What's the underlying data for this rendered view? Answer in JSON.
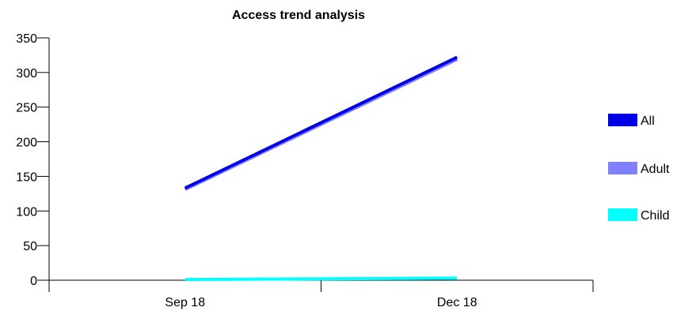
{
  "chart_data": {
    "type": "line",
    "title": "Access trend analysis",
    "xlabel": "",
    "ylabel": "",
    "categories": [
      "Sep 18",
      "Dec 18"
    ],
    "ylim": [
      0,
      350
    ],
    "yticks": [
      0,
      50,
      100,
      150,
      200,
      250,
      300,
      350
    ],
    "series": [
      {
        "name": "All",
        "values": [
          133,
          322
        ],
        "color": "#0000e6"
      },
      {
        "name": "Adult",
        "values": [
          131,
          319
        ],
        "color": "#8080ff"
      },
      {
        "name": "Child",
        "values": [
          1,
          3
        ],
        "color": "#00ffff"
      }
    ],
    "legend_position": "right",
    "grid": false
  }
}
